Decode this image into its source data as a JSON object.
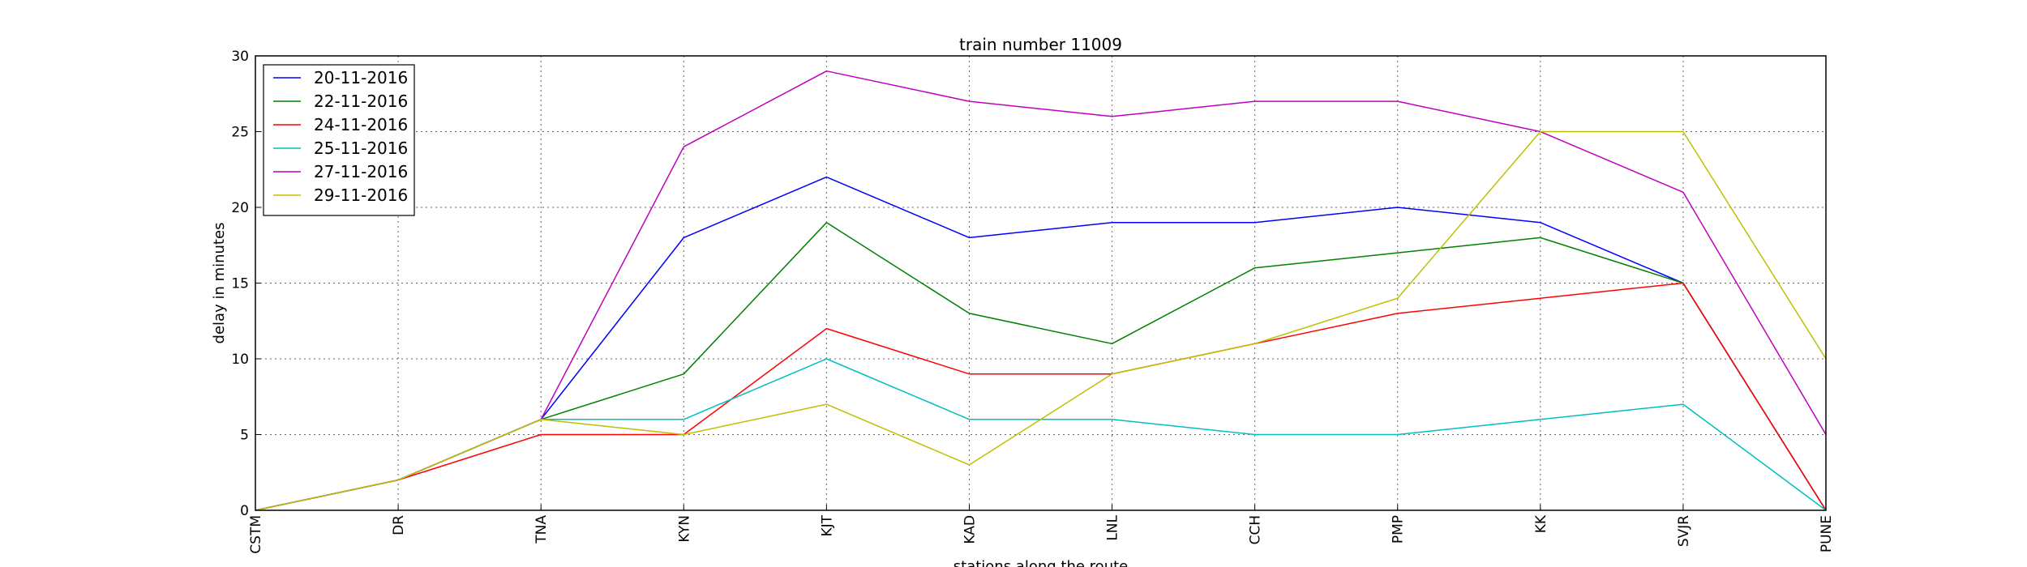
{
  "chart_data": {
    "type": "line",
    "title": "train number 11009",
    "xlabel": "stations along the route",
    "ylabel": "delay in minutes",
    "ylim": [
      0,
      30
    ],
    "yticks": [
      0,
      5,
      10,
      15,
      20,
      25,
      30
    ],
    "grid": true,
    "legend_position": "top-left",
    "categories": [
      "CSTM",
      "DR",
      "TNA",
      "KYN",
      "KJT",
      "KAD",
      "LNL",
      "CCH",
      "PMP",
      "KK",
      "SVJR",
      "PUNE"
    ],
    "series": [
      {
        "name": "20-11-2016",
        "color": "#0000ff",
        "values": [
          0,
          2,
          6,
          18,
          22,
          18,
          19,
          19,
          20,
          19,
          15,
          0
        ]
      },
      {
        "name": "22-11-2016",
        "color": "#008000",
        "values": [
          0,
          2,
          6,
          9,
          19,
          13,
          11,
          16,
          17,
          18,
          15,
          0
        ]
      },
      {
        "name": "24-11-2016",
        "color": "#ff0000",
        "values": [
          0,
          2,
          5,
          5,
          12,
          9,
          9,
          11,
          13,
          14,
          15,
          0
        ]
      },
      {
        "name": "25-11-2016",
        "color": "#00bfbf",
        "values": [
          0,
          2,
          6,
          6,
          10,
          6,
          6,
          5,
          5,
          6,
          7,
          0
        ]
      },
      {
        "name": "27-11-2016",
        "color": "#bf00bf",
        "values": [
          0,
          2,
          6,
          24,
          29,
          27,
          26,
          27,
          27,
          25,
          21,
          5
        ]
      },
      {
        "name": "29-11-2016",
        "color": "#bfbf00",
        "values": [
          0,
          2,
          6,
          5,
          7,
          3,
          9,
          11,
          14,
          25,
          25,
          10
        ]
      }
    ]
  }
}
